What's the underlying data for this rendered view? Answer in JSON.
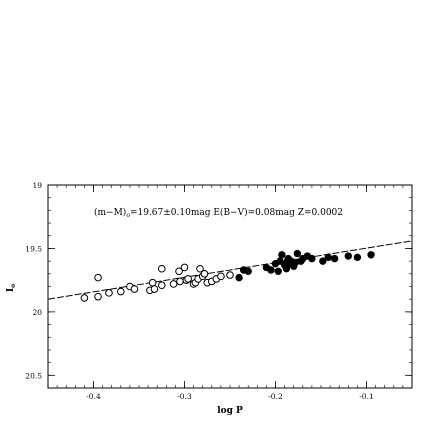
{
  "chart_data": {
    "type": "scatter",
    "xlabel": "log P",
    "ylabel": "I",
    "ylabel_sub": "o",
    "xlim": [
      -0.45,
      -0.05
    ],
    "ylim": [
      20.6,
      19.0
    ],
    "y_inverted": true,
    "x_ticks": [
      -0.4,
      -0.3,
      -0.2,
      -0.1
    ],
    "x_tick_labels": [
      "-0.4",
      "-0.3",
      "-0.2",
      "-0.1"
    ],
    "y_ticks": [
      19.0,
      19.5,
      20.0,
      20.5
    ],
    "y_tick_labels": [
      "19",
      "19.5",
      "20",
      "20.5"
    ],
    "annotation": {
      "pre": "(m−M)",
      "sub": "o",
      "post": "=19.67±0.10mag E(B−V)=0.08mag Z=0.0002"
    },
    "fit_line": {
      "x": [
        -0.45,
        -0.05
      ],
      "y": [
        19.9,
        19.44
      ]
    },
    "series": [
      {
        "marker": "open-circle",
        "points": [
          [
            -0.41,
            19.89
          ],
          [
            -0.395,
            19.73
          ],
          [
            -0.395,
            19.88
          ],
          [
            -0.383,
            19.85
          ],
          [
            -0.37,
            19.84
          ],
          [
            -0.36,
            19.8
          ],
          [
            -0.355,
            19.82
          ],
          [
            -0.338,
            19.83
          ],
          [
            -0.335,
            19.77
          ],
          [
            -0.333,
            19.82
          ],
          [
            -0.325,
            19.66
          ],
          [
            -0.325,
            19.79
          ],
          [
            -0.312,
            19.78
          ],
          [
            -0.306,
            19.68
          ],
          [
            -0.305,
            19.76
          ],
          [
            -0.3,
            19.65
          ],
          [
            -0.298,
            19.75
          ],
          [
            -0.296,
            19.74
          ],
          [
            -0.29,
            19.78
          ],
          [
            -0.288,
            19.77
          ],
          [
            -0.285,
            19.74
          ],
          [
            -0.283,
            19.66
          ],
          [
            -0.28,
            19.72
          ],
          [
            -0.278,
            19.7
          ],
          [
            -0.275,
            19.77
          ],
          [
            -0.27,
            19.76
          ],
          [
            -0.265,
            19.74
          ],
          [
            -0.26,
            19.72
          ],
          [
            -0.25,
            19.71
          ]
        ]
      },
      {
        "marker": "filled-circle",
        "points": [
          [
            -0.24,
            19.73
          ],
          [
            -0.235,
            19.67
          ],
          [
            -0.23,
            19.68
          ],
          [
            -0.21,
            19.65
          ],
          [
            -0.205,
            19.67
          ],
          [
            -0.2,
            19.62
          ],
          [
            -0.197,
            19.68
          ],
          [
            -0.195,
            19.6
          ],
          [
            -0.193,
            19.55
          ],
          [
            -0.19,
            19.63
          ],
          [
            -0.188,
            19.66
          ],
          [
            -0.186,
            19.58
          ],
          [
            -0.183,
            19.6
          ],
          [
            -0.18,
            19.64
          ],
          [
            -0.178,
            19.61
          ],
          [
            -0.176,
            19.54
          ],
          [
            -0.172,
            19.6
          ],
          [
            -0.17,
            19.58
          ],
          [
            -0.165,
            19.56
          ],
          [
            -0.16,
            19.58
          ],
          [
            -0.148,
            19.6
          ],
          [
            -0.142,
            19.57
          ],
          [
            -0.135,
            19.58
          ],
          [
            -0.12,
            19.56
          ],
          [
            -0.11,
            19.57
          ],
          [
            -0.095,
            19.55
          ],
          [
            -0.187,
            19.6
          ],
          [
            -0.184,
            19.62
          ]
        ]
      }
    ]
  }
}
